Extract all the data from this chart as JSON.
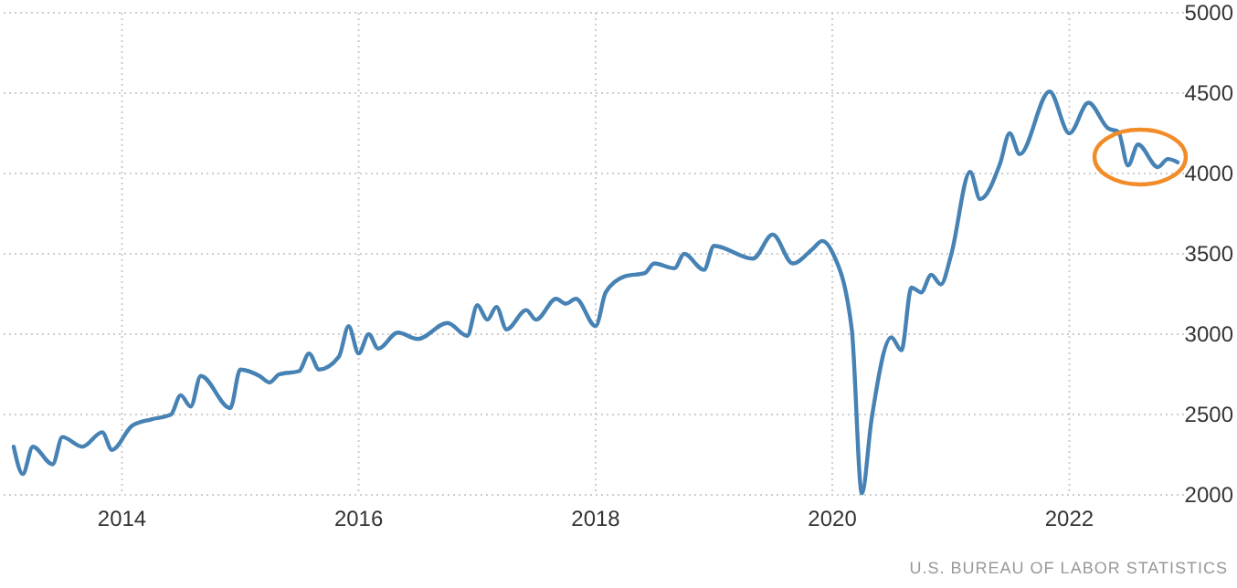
{
  "chart_data": {
    "type": "line",
    "x": [
      "2013-02",
      "2013-03",
      "2013-04",
      "2013-06",
      "2013-07",
      "2013-09",
      "2013-11",
      "2013-12",
      "2014-02",
      "2014-04",
      "2014-06",
      "2014-07",
      "2014-08",
      "2014-09",
      "2014-12",
      "2015-01",
      "2015-03",
      "2015-04",
      "2015-05",
      "2015-07",
      "2015-08",
      "2015-09",
      "2015-11",
      "2015-12",
      "2016-01",
      "2016-02",
      "2016-03",
      "2016-05",
      "2016-07",
      "2016-10",
      "2016-12",
      "2017-01",
      "2017-02",
      "2017-03",
      "2017-04",
      "2017-06",
      "2017-07",
      "2017-09",
      "2017-10",
      "2017-11",
      "2018-01",
      "2018-02",
      "2018-04",
      "2018-06",
      "2018-07",
      "2018-09",
      "2018-10",
      "2018-12",
      "2019-01",
      "2019-05",
      "2019-07",
      "2019-09",
      "2019-11",
      "2019-12",
      "2020-01",
      "2020-03",
      "2020-04",
      "2020-05",
      "2020-07",
      "2020-08",
      "2020-09",
      "2020-10",
      "2020-11",
      "2020-12",
      "2021-01",
      "2021-03",
      "2021-04",
      "2021-06",
      "2021-07",
      "2021-08",
      "2021-11",
      "2022-01",
      "2022-03",
      "2022-05",
      "2022-06",
      "2022-07",
      "2022-08",
      "2022-10",
      "2022-11",
      "2022-12"
    ],
    "series": [
      {
        "color": "#4682b4",
        "values": [
          2300,
          2130,
          2300,
          2190,
          2360,
          2300,
          2390,
          2280,
          2430,
          2470,
          2500,
          2620,
          2550,
          2740,
          2540,
          2780,
          2740,
          2700,
          2750,
          2770,
          2880,
          2780,
          2860,
          3050,
          2880,
          3000,
          2910,
          3010,
          2970,
          3070,
          2990,
          3180,
          3090,
          3170,
          3030,
          3150,
          3090,
          3220,
          3190,
          3220,
          3050,
          3260,
          3360,
          3380,
          3440,
          3410,
          3500,
          3400,
          3550,
          3470,
          3620,
          3440,
          3530,
          3580,
          3510,
          3030,
          2010,
          2470,
          2980,
          2900,
          3290,
          3260,
          3370,
          3310,
          3490,
          4010,
          3840,
          4060,
          4250,
          4120,
          4510,
          4250,
          4440,
          4280,
          4260,
          4050,
          4180,
          4040,
          4090,
          4070
        ]
      }
    ],
    "xlim": [
      "2013-01",
      "2023-01"
    ],
    "xticks": [
      {
        "value": "2014",
        "label": "2014"
      },
      {
        "value": "2016",
        "label": "2016"
      },
      {
        "value": "2018",
        "label": "2018"
      },
      {
        "value": "2020",
        "label": "2020"
      },
      {
        "value": "2022",
        "label": "2022"
      }
    ],
    "ylim": [
      2000,
      5000
    ],
    "yticks": [
      2000,
      2500,
      3000,
      3500,
      4000,
      4500,
      5000
    ],
    "grid": true,
    "line_style": "solid",
    "marker": "none",
    "annotations": [
      "U.S. BUREAU OF LABOR STATISTICS"
    ]
  }
}
